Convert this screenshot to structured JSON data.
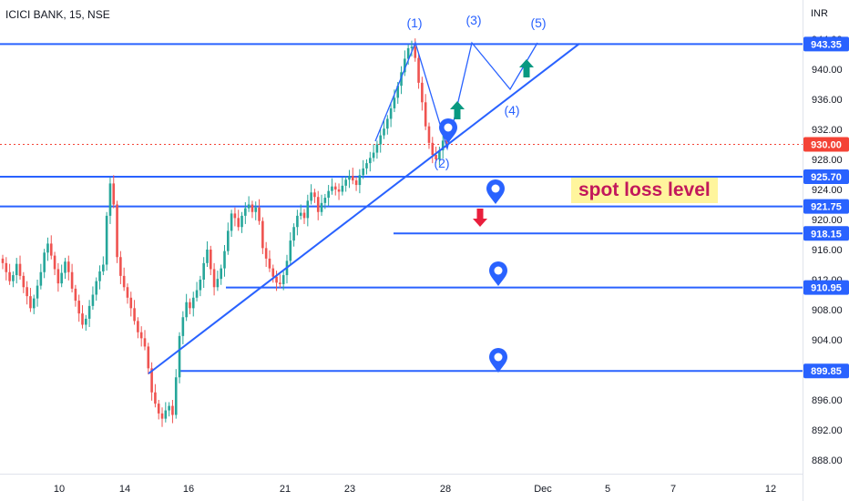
{
  "header": {
    "symbol": "ICICI BANK, 15, NSE",
    "currency": "INR"
  },
  "annotation": {
    "spot_loss_text": "spot loss level"
  },
  "colors": {
    "line": "#2962ff",
    "up_candle": "#26a69a",
    "down_candle": "#ef5350",
    "price_tag": "#f44336",
    "arrow_up": "#089981",
    "arrow_down": "#e91e3c",
    "axis_text": "#131722"
  },
  "chart_data": {
    "type": "candlestick",
    "y_axis": {
      "unit": "INR",
      "ticks": [
        888,
        892,
        896,
        900,
        904,
        908,
        912,
        916,
        920,
        924,
        928,
        932,
        936,
        940,
        944
      ],
      "tick_labels": [
        "888.00",
        "892.00",
        "896.00",
        "900.00",
        "904.00",
        "908.00",
        "912.00",
        "916.00",
        "920.00",
        "924.00",
        "928.00",
        "932.00",
        "936.00",
        "940.00",
        "944.00"
      ],
      "range": [
        886.5,
        949.5
      ]
    },
    "x_axis": {
      "ticks": [
        "10",
        "14",
        "16",
        "21",
        "23",
        "28",
        "Dec",
        "5",
        "7",
        "12"
      ]
    },
    "horizontal_levels": [
      {
        "price": 943.35,
        "label": "943.35",
        "style": "solid"
      },
      {
        "price": 925.7,
        "label": "925.70",
        "style": "solid"
      },
      {
        "price": 921.75,
        "label": "921.75",
        "style": "solid"
      },
      {
        "price": 918.15,
        "label": "918.15",
        "style": "solid"
      },
      {
        "price": 910.95,
        "label": "910.95",
        "style": "solid"
      },
      {
        "price": 899.85,
        "label": "899.85",
        "style": "solid"
      }
    ],
    "current_price": {
      "price": 930.0,
      "label": "930.00"
    },
    "trendline": {
      "from": {
        "x": "14",
        "y": 899.5
      },
      "to": {
        "x": "Dec",
        "y": 943.4
      }
    },
    "elliott_wave_labels": [
      "(1)",
      "(2)",
      "(3)",
      "(4)",
      "(5)"
    ],
    "candles_close": [
      914.2,
      913.0,
      911.8,
      912.6,
      914.1,
      912.5,
      911.0,
      909.8,
      908.2,
      909.5,
      911.2,
      913.0,
      915.6,
      916.8,
      915.2,
      913.4,
      911.5,
      912.9,
      914.4,
      913.0,
      910.8,
      909.2,
      907.5,
      906.0,
      906.8,
      908.5,
      910.0,
      911.8,
      913.1,
      914.0,
      920.5,
      924.8,
      922.0,
      915.0,
      912.5,
      911.0,
      909.6,
      908.2,
      906.5,
      905.0,
      904.2,
      903.1,
      900.2,
      897.0,
      895.5,
      894.2,
      893.5,
      894.6,
      895.2,
      894.0,
      899.0,
      904.5,
      907.0,
      909.0,
      908.2,
      909.6,
      910.6,
      912.0,
      914.2,
      916.0,
      913.4,
      911.0,
      912.1,
      913.5,
      915.8,
      918.5,
      920.8,
      920.2,
      919.0,
      920.5,
      921.5,
      922.0,
      921.0,
      921.6,
      919.8,
      916.2,
      914.8,
      913.5,
      912.4,
      911.6,
      911.4,
      912.6,
      914.5,
      917.2,
      919.0,
      920.5,
      920.9,
      920.2,
      922.5,
      923.6,
      923.0,
      921.0,
      922.2,
      922.9,
      923.8,
      924.4,
      924.0,
      923.7,
      924.5,
      925.3,
      925.8,
      925.2,
      924.6,
      925.9,
      926.8,
      927.5,
      928.2,
      928.9,
      930.0,
      931.2,
      932.1,
      933.4,
      934.8,
      936.2,
      937.8,
      939.6,
      941.4,
      942.8,
      943.0,
      941.5,
      938.2,
      935.6,
      932.4,
      930.2,
      928.6,
      928.0,
      929.2,
      930.5,
      930.0
    ]
  }
}
